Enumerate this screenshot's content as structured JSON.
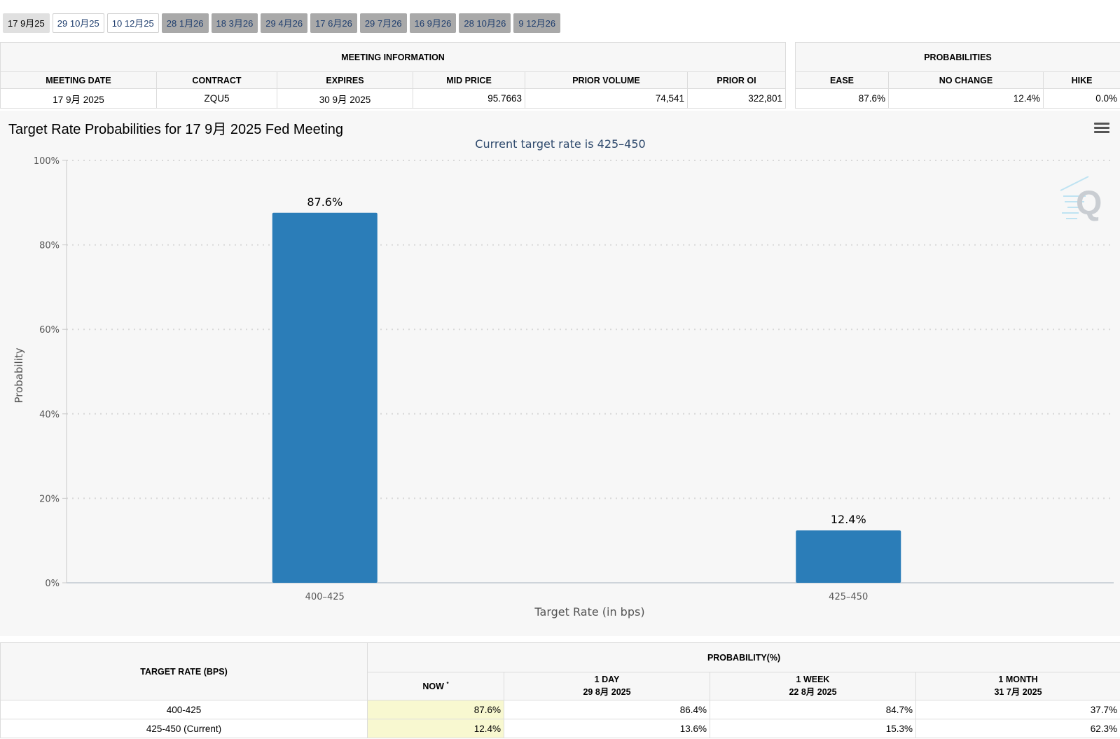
{
  "tabs": [
    {
      "label": "17 9月25",
      "state": "active"
    },
    {
      "label": "29 10月25",
      "state": "open"
    },
    {
      "label": "10 12月25",
      "state": "open"
    },
    {
      "label": "28 1月26",
      "state": "grey"
    },
    {
      "label": "18 3月26",
      "state": "grey"
    },
    {
      "label": "29 4月26",
      "state": "grey"
    },
    {
      "label": "17 6月26",
      "state": "grey"
    },
    {
      "label": "29 7月26",
      "state": "grey"
    },
    {
      "label": "16 9月26",
      "state": "grey"
    },
    {
      "label": "28 10月26",
      "state": "grey"
    },
    {
      "label": "9 12月26",
      "state": "grey"
    }
  ],
  "meeting_info": {
    "title": "MEETING INFORMATION",
    "headers": [
      "MEETING DATE",
      "CONTRACT",
      "EXPIRES",
      "MID PRICE",
      "PRIOR VOLUME",
      "PRIOR OI"
    ],
    "row": [
      "17 9月 2025",
      "ZQU5",
      "30 9月 2025",
      "95.7663",
      "74,541",
      "322,801"
    ]
  },
  "probabilities": {
    "title": "PROBABILITIES",
    "headers": [
      "EASE",
      "NO CHANGE",
      "HIKE"
    ],
    "row": [
      "87.6%",
      "12.4%",
      "0.0%"
    ]
  },
  "chart_title": "Target Rate Probabilities for 17 9月 2025 Fed Meeting",
  "chart_data": {
    "type": "bar",
    "title": "Target Rate Probabilities for 17 9月 2025 Fed Meeting",
    "subtitle": "Current target rate is 425–450",
    "categories": [
      "400–425",
      "425–450"
    ],
    "values": [
      87.6,
      12.4
    ],
    "data_labels": [
      "87.6%",
      "12.4%"
    ],
    "xlabel": "Target Rate (in bps)",
    "ylabel": "Probability",
    "ylim": [
      0,
      100
    ],
    "yticks": [
      "0%",
      "20%",
      "40%",
      "60%",
      "80%",
      "100%"
    ],
    "grid": true,
    "bar_color": "#2b7db8"
  },
  "rate_table": {
    "col_header": "TARGET RATE (BPS)",
    "group_header": "PROBABILITY(%)",
    "sub_headers": [
      {
        "line1": "NOW",
        "sup": "*",
        "line2": ""
      },
      {
        "line1": "1 DAY",
        "line2": "29 8月 2025"
      },
      {
        "line1": "1 WEEK",
        "line2": "22 8月 2025"
      },
      {
        "line1": "1 MONTH",
        "line2": "31 7月 2025"
      }
    ],
    "rows": [
      {
        "rate": "400-425",
        "values": [
          "87.6%",
          "86.4%",
          "84.7%",
          "37.7%"
        ]
      },
      {
        "rate": "425-450 (Current)",
        "values": [
          "12.4%",
          "13.6%",
          "15.3%",
          "62.3%"
        ]
      }
    ]
  }
}
